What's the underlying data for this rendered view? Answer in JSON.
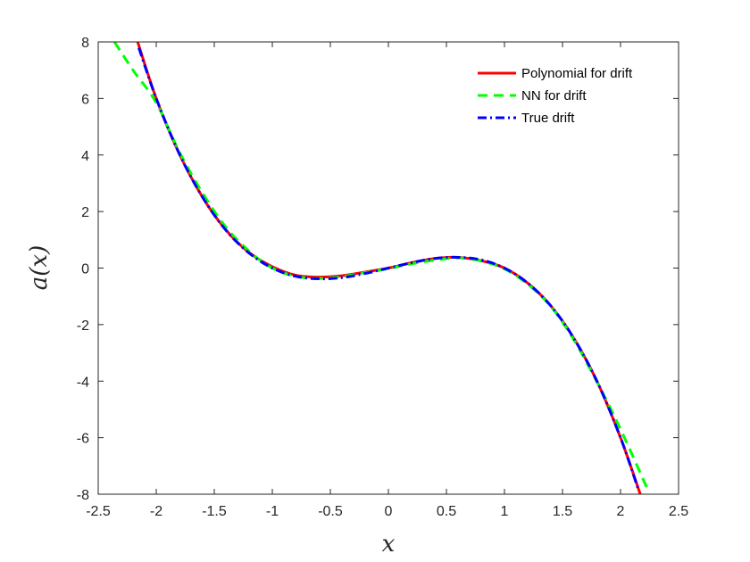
{
  "chart_data": {
    "type": "line",
    "xlabel": "x",
    "ylabel": "a(x)",
    "xlim": [
      -2.5,
      2.5
    ],
    "ylim": [
      -8,
      8
    ],
    "xticks": [
      "-2.5",
      "-2",
      "-1.5",
      "-1",
      "-0.5",
      "0",
      "0.5",
      "1",
      "1.5",
      "2",
      "2.5"
    ],
    "yticks": [
      "-8",
      "-6",
      "-4",
      "-2",
      "0",
      "2",
      "4",
      "6",
      "8"
    ],
    "grid": false,
    "legend_position": "top-right",
    "series": [
      {
        "name": "Polynomial for drift",
        "color": "#ff0000",
        "style": "solid",
        "x": [
          -2.16,
          -2.0,
          -1.8,
          -1.6,
          -1.4,
          -1.2,
          -1.0,
          -0.8,
          -0.6,
          -0.4,
          -0.2,
          0.0,
          0.2,
          0.4,
          0.6,
          0.8,
          1.0,
          1.2,
          1.4,
          1.6,
          1.8,
          2.0,
          2.17
        ],
        "y": [
          8.0,
          6.0,
          4.03,
          2.5,
          1.35,
          0.55,
          0.05,
          -0.25,
          -0.32,
          -0.27,
          -0.14,
          0.0,
          0.19,
          0.34,
          0.38,
          0.26,
          0.0,
          -0.53,
          -1.34,
          -2.5,
          -4.03,
          -6.0,
          -8.0
        ]
      },
      {
        "name": "NN for drift",
        "color": "#00ff00",
        "style": "dashed",
        "x": [
          -2.36,
          -2.2,
          -2.0,
          -1.8,
          -1.6,
          -1.4,
          -1.2,
          -1.0,
          -0.8,
          -0.6,
          -0.4,
          -0.2,
          0.0,
          0.2,
          0.4,
          0.6,
          0.8,
          1.0,
          1.2,
          1.4,
          1.6,
          1.8,
          2.0,
          2.23
        ],
        "y": [
          8.0,
          7.0,
          5.85,
          4.1,
          2.65,
          1.45,
          0.6,
          0.0,
          -0.29,
          -0.37,
          -0.3,
          -0.16,
          -0.02,
          0.15,
          0.28,
          0.36,
          0.25,
          -0.03,
          -0.57,
          -1.36,
          -2.55,
          -4.05,
          -5.7,
          -7.8
        ]
      },
      {
        "name": "True drift",
        "color": "#0000ff",
        "style": "dashdot",
        "x": [
          -2.15,
          -2.0,
          -1.8,
          -1.6,
          -1.4,
          -1.2,
          -1.0,
          -0.8,
          -0.6,
          -0.4,
          -0.2,
          0.0,
          0.2,
          0.4,
          0.6,
          0.8,
          1.0,
          1.2,
          1.4,
          1.6,
          1.8,
          2.0,
          2.15
        ],
        "y": [
          7.79,
          6.0,
          4.03,
          2.5,
          1.34,
          0.53,
          0.0,
          -0.29,
          -0.38,
          -0.34,
          -0.19,
          0.0,
          0.19,
          0.34,
          0.38,
          0.29,
          0.0,
          -0.53,
          -1.34,
          -2.5,
          -4.03,
          -6.0,
          -7.79
        ]
      }
    ]
  }
}
